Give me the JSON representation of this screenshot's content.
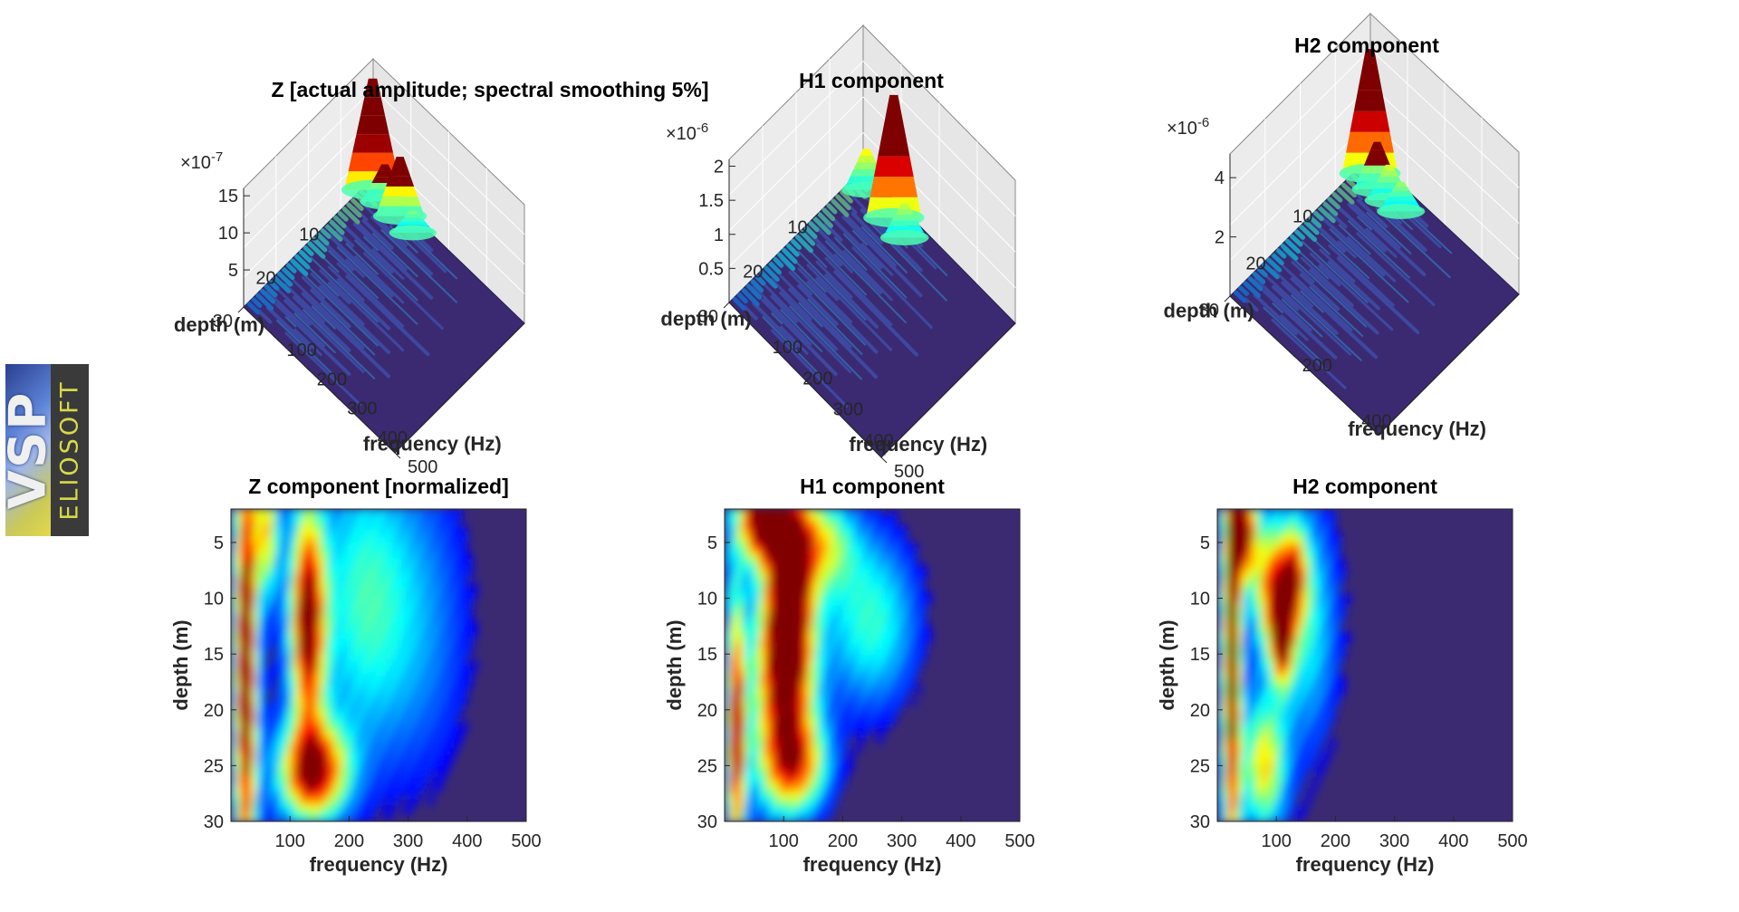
{
  "logo": {
    "mark": "VSP",
    "text": "ELIOSOFT"
  },
  "colors": {
    "colormap": "jet",
    "background": "#3b2a72",
    "pane": "#e6e6e6"
  },
  "chart_data": [
    {
      "type": "surface",
      "title": "Z [actual amplitude; spectral smoothing 5%]",
      "xlabel": "frequency (Hz)",
      "ylabel": "depth (m)",
      "exponent": "-7",
      "x_ticks": [
        100,
        200,
        300,
        400,
        500
      ],
      "y_ticks": [
        10,
        20,
        30
      ],
      "z_ticks": [
        "5",
        "10",
        "15"
      ],
      "xlim": [
        0,
        500
      ],
      "ylim": [
        0,
        30
      ],
      "zlim": [
        0,
        16
      ],
      "peaks": [
        {
          "freq": 20,
          "depth": 1.5,
          "amp": 15
        },
        {
          "freq": 110,
          "depth": 1.5,
          "amp": 8
        },
        {
          "freq": 60,
          "depth": 1.5,
          "amp": 5
        },
        {
          "freq": 160,
          "depth": 2,
          "amp": 3
        }
      ]
    },
    {
      "type": "surface",
      "title": "H1 component",
      "xlabel": "frequency (Hz)",
      "ylabel": "depth (m)",
      "exponent": "-6",
      "x_ticks": [
        100,
        200,
        300,
        400,
        500
      ],
      "y_ticks": [
        10,
        20,
        30
      ],
      "z_ticks": [
        "0.5",
        "1",
        "1.5",
        "2"
      ],
      "xlim": [
        0,
        500
      ],
      "ylim": [
        0,
        30
      ],
      "zlim": [
        0,
        2.1
      ],
      "peaks": [
        {
          "freq": 130,
          "depth": 2,
          "amp": 1.8
        },
        {
          "freq": 40,
          "depth": 2,
          "amp": 0.6
        },
        {
          "freq": 180,
          "depth": 3,
          "amp": 0.5
        }
      ]
    },
    {
      "type": "surface",
      "title": "H2 component",
      "xlabel": "frequency (Hz)",
      "ylabel": "depth (m)",
      "exponent": "-6",
      "x_ticks": [
        200,
        400
      ],
      "y_ticks": [
        10,
        20,
        30
      ],
      "z_ticks": [
        "2",
        "4"
      ],
      "xlim": [
        0,
        500
      ],
      "ylim": [
        0,
        30
      ],
      "zlim": [
        0,
        4.8
      ],
      "peaks": [
        {
          "freq": 30,
          "depth": 2,
          "amp": 4.2
        },
        {
          "freq": 70,
          "depth": 3,
          "amp": 1.6
        },
        {
          "freq": 110,
          "depth": 3,
          "amp": 1.2
        },
        {
          "freq": 150,
          "depth": 3,
          "amp": 1.0
        }
      ]
    },
    {
      "type": "heatmap",
      "title": "Z component [normalized]",
      "xlabel": "frequency (Hz)",
      "ylabel": "depth (m)",
      "x_ticks": [
        100,
        200,
        300,
        400,
        500
      ],
      "y_ticks": [
        5,
        10,
        15,
        20,
        25,
        30
      ],
      "xlim": [
        0,
        500
      ],
      "ylim": [
        2,
        30
      ],
      "hotspots": [
        {
          "freq": 25,
          "depth": 16,
          "sf": 12,
          "sd": 14,
          "amp": 1.0
        },
        {
          "freq": 130,
          "depth": 12,
          "sf": 20,
          "sd": 7,
          "amp": 0.95
        },
        {
          "freq": 140,
          "depth": 25.5,
          "sf": 40,
          "sd": 3,
          "amp": 0.9
        },
        {
          "freq": 60,
          "depth": 4,
          "sf": 15,
          "sd": 4,
          "amp": 0.55
        },
        {
          "freq": 220,
          "depth": 10,
          "sf": 60,
          "sd": 10,
          "amp": 0.35
        },
        {
          "freq": 330,
          "depth": 12,
          "sf": 70,
          "sd": 12,
          "amp": 0.22
        }
      ]
    },
    {
      "type": "heatmap",
      "title": "H1 component",
      "xlabel": "frequency (Hz)",
      "ylabel": "depth (m)",
      "x_ticks": [
        100,
        200,
        300,
        400,
        500
      ],
      "y_ticks": [
        5,
        10,
        15,
        20,
        25,
        30
      ],
      "xlim": [
        0,
        500
      ],
      "ylim": [
        2,
        30
      ],
      "hotspots": [
        {
          "freq": 110,
          "depth": 8,
          "sf": 25,
          "sd": 6,
          "amp": 0.95
        },
        {
          "freq": 60,
          "depth": 3,
          "sf": 25,
          "sd": 2.5,
          "amp": 0.95
        },
        {
          "freq": 100,
          "depth": 17,
          "sf": 35,
          "sd": 6,
          "amp": 0.85
        },
        {
          "freq": 20,
          "depth": 22,
          "sf": 10,
          "sd": 8,
          "amp": 0.85
        },
        {
          "freq": 160,
          "depth": 5,
          "sf": 40,
          "sd": 3,
          "amp": 0.5
        },
        {
          "freq": 250,
          "depth": 12,
          "sf": 60,
          "sd": 6,
          "amp": 0.4
        },
        {
          "freq": 120,
          "depth": 25,
          "sf": 40,
          "sd": 3,
          "amp": 0.6
        }
      ]
    },
    {
      "type": "heatmap",
      "title": "H2 component",
      "xlabel": "frequency (Hz)",
      "ylabel": "depth (m)",
      "x_ticks": [
        100,
        200,
        300,
        400,
        500
      ],
      "y_ticks": [
        5,
        10,
        15,
        20,
        25,
        30
      ],
      "xlim": [
        0,
        500
      ],
      "ylim": [
        2,
        30
      ],
      "hotspots": [
        {
          "freq": 25,
          "depth": 15,
          "sf": 10,
          "sd": 14,
          "amp": 0.95
        },
        {
          "freq": 45,
          "depth": 4,
          "sf": 15,
          "sd": 3,
          "amp": 0.9
        },
        {
          "freq": 110,
          "depth": 13,
          "sf": 12,
          "sd": 3,
          "amp": 0.9
        },
        {
          "freq": 90,
          "depth": 9,
          "sf": 20,
          "sd": 4,
          "amp": 0.6
        },
        {
          "freq": 130,
          "depth": 8,
          "sf": 15,
          "sd": 3,
          "amp": 0.6
        },
        {
          "freq": 150,
          "depth": 12,
          "sf": 40,
          "sd": 8,
          "amp": 0.35
        },
        {
          "freq": 80,
          "depth": 25,
          "sf": 25,
          "sd": 4,
          "amp": 0.55
        }
      ]
    }
  ]
}
